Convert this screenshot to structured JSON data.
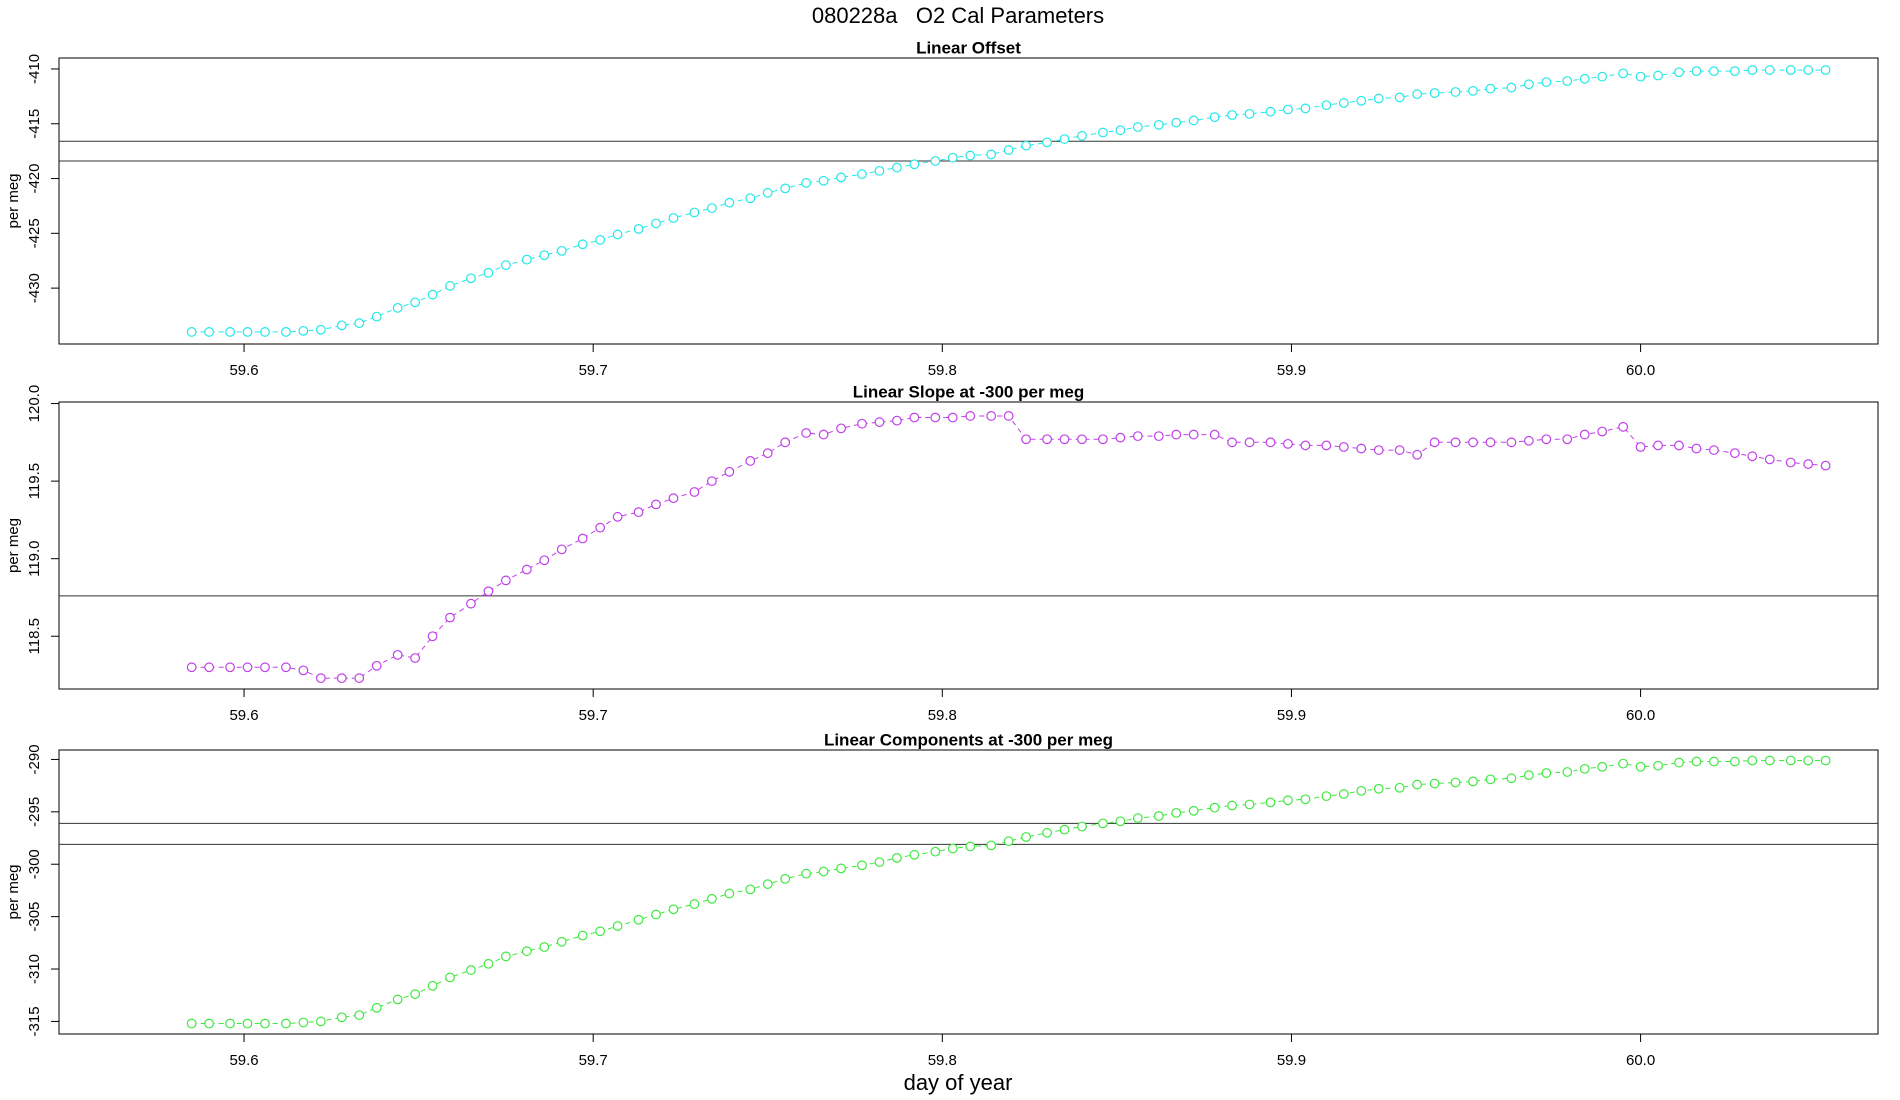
{
  "title": "080228a   O2 Cal Parameters",
  "xlabel": "day of year",
  "chart_data": [
    {
      "type": "scatter",
      "title": "Linear Offset",
      "ylabel": "per meg",
      "xlim": [
        59.547,
        60.068
      ],
      "xticks": [
        59.6,
        59.7,
        59.8,
        59.9,
        {
          "value": 60,
          "label": "60.0"
        }
      ],
      "ylim": [
        -435.1,
        -409.0
      ],
      "yticks": [
        -430,
        -425,
        -420,
        -415,
        -410
      ],
      "hlines": [
        -416.6,
        -418.4
      ],
      "x": [
        59.585,
        59.59,
        59.596,
        59.601,
        59.606,
        59.612,
        59.617,
        59.622,
        59.628,
        59.633,
        59.638,
        59.644,
        59.649,
        59.654,
        59.659,
        59.665,
        59.67,
        59.675,
        59.681,
        59.686,
        59.691,
        59.697,
        59.702,
        59.707,
        59.713,
        59.718,
        59.723,
        59.729,
        59.734,
        59.739,
        59.745,
        59.75,
        59.755,
        59.761,
        59.766,
        59.771,
        59.777,
        59.782,
        59.787,
        59.792,
        59.798,
        59.803,
        59.808,
        59.814,
        59.819,
        59.824,
        59.83,
        59.835,
        59.84,
        59.846,
        59.851,
        59.856,
        59.862,
        59.867,
        59.872,
        59.878,
        59.883,
        59.888,
        59.894,
        59.899,
        59.904,
        59.91,
        59.915,
        59.92,
        59.925,
        59.931,
        59.936,
        59.941,
        59.947,
        59.952,
        59.957,
        59.963,
        59.968,
        59.973,
        59.979,
        59.984,
        59.989,
        59.995,
        60.0,
        60.005,
        60.011,
        60.016,
        60.021,
        60.027,
        60.032,
        60.037,
        60.043,
        60.048,
        60.053
      ],
      "series": [
        {
          "color": "#22e8e8",
          "values": [
            -434.0,
            -434.0,
            -434.0,
            -434.0,
            -434.0,
            -434.0,
            -433.9,
            -433.8,
            -433.4,
            -433.2,
            -432.6,
            -431.8,
            -431.3,
            -430.6,
            -429.8,
            -429.1,
            -428.6,
            -427.9,
            -427.4,
            -427.0,
            -426.6,
            -426.0,
            -425.6,
            -425.1,
            -424.6,
            -424.1,
            -423.6,
            -423.1,
            -422.7,
            -422.2,
            -421.8,
            -421.3,
            -420.9,
            -420.4,
            -420.2,
            -419.9,
            -419.6,
            -419.3,
            -419.0,
            -418.7,
            -418.4,
            -418.1,
            -417.9,
            -417.8,
            -417.4,
            -417.0,
            -416.7,
            -416.4,
            -416.1,
            -415.8,
            -415.6,
            -415.3,
            -415.1,
            -414.9,
            -414.7,
            -414.4,
            -414.2,
            -414.1,
            -413.9,
            -413.7,
            -413.6,
            -413.3,
            -413.1,
            -412.9,
            -412.7,
            -412.6,
            -412.3,
            -412.2,
            -412.1,
            -412.0,
            -411.8,
            -411.7,
            -411.4,
            -411.2,
            -411.1,
            -410.9,
            -410.7,
            -410.4,
            -410.7,
            -410.6,
            -410.3,
            -410.2,
            -410.2,
            -410.2,
            -410.1,
            -410.1,
            -410.1,
            -410.1,
            -410.1
          ]
        }
      ]
    },
    {
      "type": "scatter",
      "title": "Linear Slope at -300 per meg",
      "ylabel": "per meg",
      "xlim": [
        59.547,
        60.068
      ],
      "xticks": [
        59.6,
        59.7,
        59.8,
        59.9,
        {
          "value": 60,
          "label": "60.0"
        }
      ],
      "ylim": [
        118.16,
        120.01
      ],
      "yticks": [
        118.5,
        {
          "value": 119,
          "label": "119.0"
        },
        119.5,
        {
          "value": 120,
          "label": "120.0"
        }
      ],
      "hlines": [
        118.76
      ],
      "x": [
        59.585,
        59.59,
        59.596,
        59.601,
        59.606,
        59.612,
        59.617,
        59.622,
        59.628,
        59.633,
        59.638,
        59.644,
        59.649,
        59.654,
        59.659,
        59.665,
        59.67,
        59.675,
        59.681,
        59.686,
        59.691,
        59.697,
        59.702,
        59.707,
        59.713,
        59.718,
        59.723,
        59.729,
        59.734,
        59.739,
        59.745,
        59.75,
        59.755,
        59.761,
        59.766,
        59.771,
        59.777,
        59.782,
        59.787,
        59.792,
        59.798,
        59.803,
        59.808,
        59.814,
        59.819,
        59.824,
        59.83,
        59.835,
        59.84,
        59.846,
        59.851,
        59.856,
        59.862,
        59.867,
        59.872,
        59.878,
        59.883,
        59.888,
        59.894,
        59.899,
        59.904,
        59.91,
        59.915,
        59.92,
        59.925,
        59.931,
        59.936,
        59.941,
        59.947,
        59.952,
        59.957,
        59.963,
        59.968,
        59.973,
        59.979,
        59.984,
        59.989,
        59.995,
        60.0,
        60.005,
        60.011,
        60.016,
        60.021,
        60.027,
        60.032,
        60.037,
        60.043,
        60.048,
        60.053
      ],
      "series": [
        {
          "color": "#c040e8",
          "values": [
            118.3,
            118.3,
            118.3,
            118.3,
            118.3,
            118.3,
            118.28,
            118.23,
            118.23,
            118.23,
            118.31,
            118.38,
            118.36,
            118.5,
            118.62,
            118.71,
            118.79,
            118.86,
            118.93,
            118.99,
            119.06,
            119.13,
            119.2,
            119.27,
            119.3,
            119.35,
            119.39,
            119.43,
            119.5,
            119.56,
            119.63,
            119.68,
            119.75,
            119.81,
            119.8,
            119.84,
            119.87,
            119.88,
            119.89,
            119.91,
            119.91,
            119.91,
            119.92,
            119.92,
            119.92,
            119.77,
            119.77,
            119.77,
            119.77,
            119.77,
            119.78,
            119.79,
            119.79,
            119.8,
            119.8,
            119.8,
            119.75,
            119.75,
            119.75,
            119.74,
            119.73,
            119.73,
            119.72,
            119.71,
            119.7,
            119.7,
            119.67,
            119.75,
            119.75,
            119.75,
            119.75,
            119.75,
            119.76,
            119.77,
            119.77,
            119.8,
            119.82,
            119.85,
            119.72,
            119.73,
            119.73,
            119.71,
            119.7,
            119.68,
            119.66,
            119.64,
            119.62,
            119.61,
            119.6
          ]
        }
      ]
    },
    {
      "type": "scatter",
      "title": "Linear Components at -300 per meg",
      "ylabel": "per meg",
      "xlim": [
        59.547,
        60.068
      ],
      "xticks": [
        59.6,
        59.7,
        59.8,
        59.9,
        {
          "value": 60,
          "label": "60.0"
        }
      ],
      "ylim": [
        -316.2,
        -289.1
      ],
      "yticks": [
        -315,
        -310,
        -305,
        -300,
        -295,
        -290
      ],
      "hlines": [
        -296.1,
        -298.1
      ],
      "x": [
        59.585,
        59.59,
        59.596,
        59.601,
        59.606,
        59.612,
        59.617,
        59.622,
        59.628,
        59.633,
        59.638,
        59.644,
        59.649,
        59.654,
        59.659,
        59.665,
        59.67,
        59.675,
        59.681,
        59.686,
        59.691,
        59.697,
        59.702,
        59.707,
        59.713,
        59.718,
        59.723,
        59.729,
        59.734,
        59.739,
        59.745,
        59.75,
        59.755,
        59.761,
        59.766,
        59.771,
        59.777,
        59.782,
        59.787,
        59.792,
        59.798,
        59.803,
        59.808,
        59.814,
        59.819,
        59.824,
        59.83,
        59.835,
        59.84,
        59.846,
        59.851,
        59.856,
        59.862,
        59.867,
        59.872,
        59.878,
        59.883,
        59.888,
        59.894,
        59.899,
        59.904,
        59.91,
        59.915,
        59.92,
        59.925,
        59.931,
        59.936,
        59.941,
        59.947,
        59.952,
        59.957,
        59.963,
        59.968,
        59.973,
        59.979,
        59.984,
        59.989,
        59.995,
        60.0,
        60.005,
        60.011,
        60.016,
        60.021,
        60.027,
        60.032,
        60.037,
        60.043,
        60.048,
        60.053
      ],
      "series": [
        {
          "color": "#40e840",
          "values": [
            -315.2,
            -315.2,
            -315.2,
            -315.2,
            -315.2,
            -315.2,
            -315.1,
            -315.0,
            -314.6,
            -314.4,
            -313.7,
            -312.9,
            -312.4,
            -311.6,
            -310.8,
            -310.1,
            -309.5,
            -308.8,
            -308.3,
            -307.9,
            -307.4,
            -306.8,
            -306.4,
            -305.9,
            -305.3,
            -304.8,
            -304.3,
            -303.8,
            -303.3,
            -302.8,
            -302.4,
            -301.9,
            -301.4,
            -300.9,
            -300.7,
            -300.4,
            -300.1,
            -299.8,
            -299.4,
            -299.1,
            -298.8,
            -298.5,
            -298.3,
            -298.2,
            -297.8,
            -297.4,
            -297.0,
            -296.7,
            -296.4,
            -296.1,
            -295.9,
            -295.6,
            -295.4,
            -295.1,
            -294.9,
            -294.6,
            -294.4,
            -294.3,
            -294.1,
            -293.9,
            -293.8,
            -293.5,
            -293.3,
            -293.0,
            -292.8,
            -292.7,
            -292.4,
            -292.3,
            -292.2,
            -292.1,
            -291.9,
            -291.8,
            -291.5,
            -291.3,
            -291.2,
            -290.9,
            -290.7,
            -290.4,
            -290.7,
            -290.6,
            -290.3,
            -290.2,
            -290.2,
            -290.2,
            -290.1,
            -290.1,
            -290.1,
            -290.1,
            -290.1
          ]
        }
      ]
    }
  ]
}
